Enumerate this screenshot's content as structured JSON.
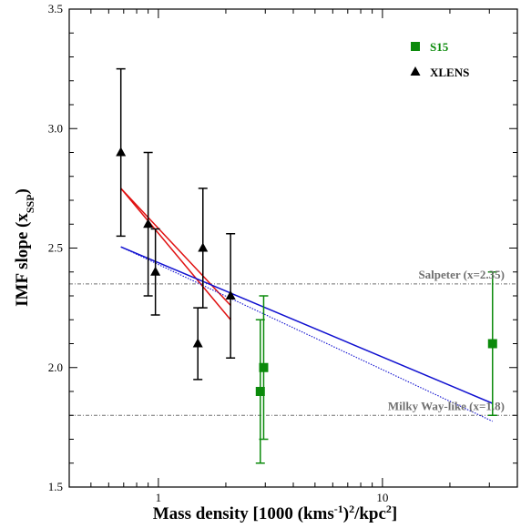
{
  "chart_data": {
    "type": "scatter",
    "xlabel": "Mass density [1000 (kms",
    "xlabel_sup1": "-1",
    "xlabel_mid": ")",
    "xlabel_sup2": "2",
    "xlabel_end": "/kpc",
    "xlabel_sup3": "2",
    "xlabel_close": "]",
    "ylabel": "IMF slope (x",
    "ylabel_sub": "SSP",
    "ylabel_close": ")",
    "xscale": "log",
    "xlim": [
      0.4,
      40
    ],
    "ylim": [
      1.5,
      3.5
    ],
    "xticks": [
      {
        "value": 1,
        "label": "1"
      },
      {
        "value": 10,
        "label": "10"
      }
    ],
    "yticks": [
      {
        "value": 1.5,
        "label": "1.5"
      },
      {
        "value": 2.0,
        "label": "2.0"
      },
      {
        "value": 2.5,
        "label": "2.5"
      },
      {
        "value": 3.0,
        "label": "3.0"
      },
      {
        "value": 3.5,
        "label": "3.5"
      }
    ],
    "legend": {
      "position": "top-right"
    },
    "series": [
      {
        "name": "S15",
        "color": "#0b8a0b",
        "marker": "square",
        "points": [
          {
            "x": 2.85,
            "y": 1.9,
            "ylow": 1.6,
            "yhigh": 2.2
          },
          {
            "x": 2.95,
            "y": 2.0,
            "ylow": 1.7,
            "yhigh": 2.3
          },
          {
            "x": 31.0,
            "y": 2.1,
            "ylow": 1.8,
            "yhigh": 2.4
          }
        ]
      },
      {
        "name": "XLENS",
        "color": "#000000",
        "marker": "triangle",
        "points": [
          {
            "x": 0.68,
            "y": 2.9,
            "ylow": 2.55,
            "yhigh": 3.25
          },
          {
            "x": 0.9,
            "y": 2.6,
            "ylow": 2.3,
            "yhigh": 2.9
          },
          {
            "x": 0.97,
            "y": 2.4,
            "ylow": 2.22,
            "yhigh": 2.58
          },
          {
            "x": 1.5,
            "y": 2.1,
            "ylow": 1.95,
            "yhigh": 2.25
          },
          {
            "x": 1.58,
            "y": 2.5,
            "ylow": 2.25,
            "yhigh": 2.75
          },
          {
            "x": 2.1,
            "y": 2.3,
            "ylow": 2.04,
            "yhigh": 2.56
          }
        ]
      }
    ],
    "reference_lines": [
      {
        "y": 2.35,
        "label": "Salpeter (x=2.35)",
        "color": "#707070"
      },
      {
        "y": 1.8,
        "label": "Milky Way-like (x=1.8)",
        "color": "#707070"
      }
    ],
    "fit_lines": [
      {
        "color": "#e01010",
        "style": "solid",
        "x": [
          0.68,
          2.1
        ],
        "y": [
          2.75,
          2.2
        ]
      },
      {
        "color": "#e01010",
        "style": "solid",
        "x": [
          0.68,
          2.1
        ],
        "y": [
          2.75,
          2.26
        ]
      },
      {
        "color": "#1010d0",
        "style": "solid",
        "x": [
          0.68,
          31.0
        ],
        "y": [
          2.505,
          1.85
        ]
      },
      {
        "color": "#1010d0",
        "style": "dotted",
        "x": [
          0.68,
          31.0
        ],
        "y": [
          2.505,
          1.775
        ]
      }
    ]
  }
}
